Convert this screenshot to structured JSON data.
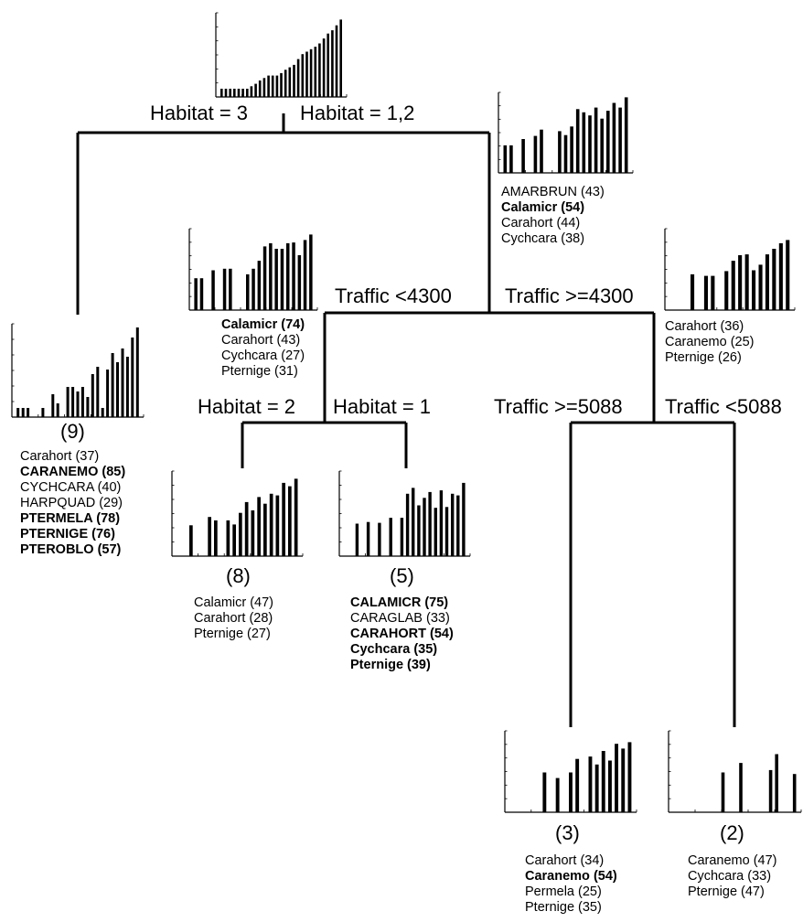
{
  "tree": {
    "splits": {
      "root_left": "Habitat = 3",
      "root_right": "Habitat = 1,2",
      "traffic_left": "Traffic <4300",
      "traffic_right": "Traffic >=4300",
      "habitat2": "Habitat = 2",
      "habitat1": "Habitat = 1",
      "traffic_ge5088": "Traffic >=5088",
      "traffic_lt5088": "Traffic <5088"
    },
    "nodes": {
      "root": {
        "bars": [
          0.1,
          0.1,
          0.1,
          0.1,
          0.1,
          0.1,
          0.1,
          0.13,
          0.16,
          0.2,
          0.23,
          0.26,
          0.26,
          0.26,
          0.29,
          0.33,
          0.36,
          0.39,
          0.46,
          0.52,
          0.55,
          0.58,
          0.61,
          0.65,
          0.71,
          0.77,
          0.81,
          0.87,
          0.94
        ]
      },
      "habitat12": {
        "bars": [
          0.35,
          0.35,
          0.0,
          0.43,
          0.0,
          0.47,
          0.55,
          0.0,
          0.0,
          0.53,
          0.48,
          0.59,
          0.81,
          0.77,
          0.73,
          0.83,
          0.69,
          0.79,
          0.89,
          0.83,
          0.96
        ],
        "species": [
          {
            "text": "AMARBRUN (43)",
            "bold": false
          },
          {
            "text": "Calamicr (54)",
            "bold": true
          },
          {
            "text": "Carahort (44)",
            "bold": false
          },
          {
            "text": "Cychcara (38)",
            "bold": false
          }
        ]
      },
      "traffic_lt4300": {
        "bars": [
          0.4,
          0.4,
          0.0,
          0.5,
          0.0,
          0.52,
          0.52,
          0.0,
          0.0,
          0.45,
          0.52,
          0.62,
          0.8,
          0.84,
          0.77,
          0.77,
          0.84,
          0.85,
          0.69,
          0.88,
          0.95
        ],
        "species": [
          {
            "text": "Calamicr (74)",
            "bold": true
          },
          {
            "text": "Carahort (43)",
            "bold": false
          },
          {
            "text": "Cychcara (27)",
            "bold": false
          },
          {
            "text": "Pternige (31)",
            "bold": false
          }
        ]
      },
      "traffic_ge4300": {
        "bars": [
          0.0,
          0.0,
          0.0,
          0.45,
          0.0,
          0.43,
          0.43,
          0.0,
          0.49,
          0.62,
          0.69,
          0.7,
          0.5,
          0.57,
          0.7,
          0.77,
          0.84,
          0.88
        ],
        "species": [
          {
            "text": "Carahort (36)",
            "bold": false
          },
          {
            "text": "Caranemo (25)",
            "bold": false
          },
          {
            "text": "Pternige (26)",
            "bold": false
          }
        ]
      },
      "leaf9": {
        "count": "(9)",
        "bars": [
          0.1,
          0.1,
          0.1,
          0.0,
          0.0,
          0.1,
          0.0,
          0.25,
          0.15,
          0.0,
          0.33,
          0.33,
          0.28,
          0.33,
          0.22,
          0.47,
          0.55,
          0.1,
          0.52,
          0.7,
          0.6,
          0.75,
          0.66,
          0.87,
          0.98
        ],
        "species": [
          {
            "text": "Carahort (37)",
            "bold": false
          },
          {
            "text": "CARANEMO (85)",
            "bold": true
          },
          {
            "text": "CYCHCARA (40)",
            "bold": false
          },
          {
            "text": "HARPQUAD (29)",
            "bold": false
          },
          {
            "text": "PTERMELA (78)",
            "bold": true
          },
          {
            "text": "PTERNIGE (76)",
            "bold": true
          },
          {
            "text": "PTEROBLO (57)",
            "bold": true
          }
        ]
      },
      "leaf8": {
        "count": "(8)",
        "bars": [
          0.0,
          0.0,
          0.37,
          0.0,
          0.0,
          0.47,
          0.43,
          0.0,
          0.43,
          0.38,
          0.52,
          0.65,
          0.55,
          0.71,
          0.63,
          0.75,
          0.73,
          0.88,
          0.84,
          0.93
        ],
        "species": [
          {
            "text": "Calamicr (47)",
            "bold": false
          },
          {
            "text": "Carahort (28)",
            "bold": false
          },
          {
            "text": "Pternige (27)",
            "bold": false
          }
        ]
      },
      "leaf5": {
        "count": "(5)",
        "bars": [
          0.0,
          0.0,
          0.39,
          0.0,
          0.41,
          0.0,
          0.4,
          0.0,
          0.46,
          0.0,
          0.46,
          0.75,
          0.82,
          0.61,
          0.7,
          0.77,
          0.58,
          0.79,
          0.59,
          0.75,
          0.73,
          0.88
        ],
        "species": [
          {
            "text": "CALAMICR (75)",
            "bold": true
          },
          {
            "text": "CARAGLAB (33)",
            "bold": false
          },
          {
            "text": "CARAHORT (54)",
            "bold": true
          },
          {
            "text": "Cychcara (35)",
            "bold": true
          },
          {
            "text": "Pternige (39)",
            "bold": true
          }
        ]
      },
      "leaf3": {
        "count": "(3)",
        "bars": [
          0.0,
          0.0,
          0.0,
          0.0,
          0.0,
          0.5,
          0.0,
          0.43,
          0.0,
          0.5,
          0.67,
          0.0,
          0.7,
          0.6,
          0.77,
          0.65,
          0.86,
          0.8,
          0.88
        ],
        "species": [
          {
            "text": "Carahort (34)",
            "bold": false
          },
          {
            "text": "Caranemo (54)",
            "bold": true
          },
          {
            "text": "Permela (25)",
            "bold": false
          },
          {
            "text": "Pternige (35)",
            "bold": false
          }
        ]
      },
      "leaf2": {
        "count": "(2)",
        "bars": [
          0.0,
          0.0,
          0.0,
          0.0,
          0.0,
          0.0,
          0.0,
          0.0,
          0.5,
          0.0,
          0.0,
          0.62,
          0.0,
          0.0,
          0.0,
          0.0,
          0.53,
          0.73,
          0.0,
          0.0,
          0.48
        ],
        "species": [
          {
            "text": "Caranemo (47)",
            "bold": false
          },
          {
            "text": "Cychcara (33)",
            "bold": false
          },
          {
            "text": "Pternige (47)",
            "bold": false
          }
        ]
      }
    }
  }
}
